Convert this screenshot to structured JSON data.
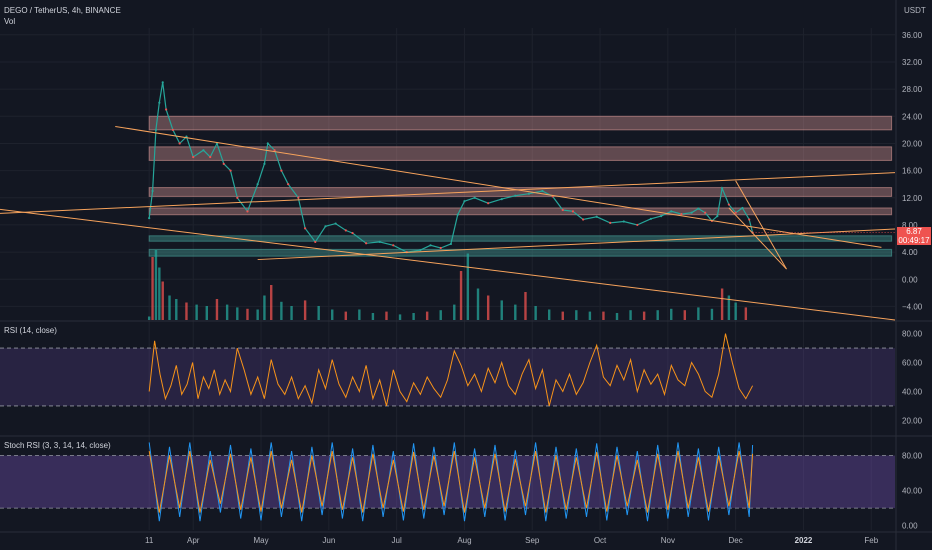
{
  "header": {
    "symbol_line": "DEGO / TetherUS, 4h, BINANCE",
    "vol_label": "Vol",
    "currency": "USDT"
  },
  "price_badge": {
    "price": "6.87",
    "countdown": "00:49:17",
    "color": "#ef5350"
  },
  "colors": {
    "background": "#131722",
    "grid": "#1e222d",
    "resistance_zone": "#f0a7a2",
    "support_zone": "#4db6ac",
    "trendline": "#f7a35c",
    "rsi_line": "#f7931a",
    "rsi_band": "#7e57c2",
    "stoch_k": "#2196f3",
    "stoch_d": "#f7931a",
    "volume_up": "#26a69a",
    "volume_down": "#ef5350"
  },
  "chart_data": [
    {
      "type": "line",
      "pane": "price",
      "ylim": [
        -6,
        37
      ],
      "y_ticks": [
        36,
        32,
        28,
        24,
        20,
        16,
        12,
        8,
        4,
        0,
        -4
      ],
      "y_tick_labels": [
        "36.00",
        "32.00",
        "28.00",
        "24.00",
        "20.00",
        "16.00",
        "12.00",
        "8.00",
        "4.00",
        "0.00",
        "−4.00"
      ],
      "x_tick_labels": [
        "11",
        "Apr",
        "May",
        "Jun",
        "Jul",
        "Aug",
        "Sep",
        "Oct",
        "Nov",
        "Dec",
        "2022",
        "Feb"
      ],
      "x_ticks": [
        0.0,
        0.65,
        1.65,
        2.65,
        3.65,
        4.65,
        5.65,
        6.65,
        7.65,
        8.65,
        9.65,
        10.65
      ],
      "x_label_bold": [
        "2022"
      ],
      "x_range": [
        -2.2,
        11.0
      ],
      "close_series": {
        "x": [
          0.0,
          0.05,
          0.1,
          0.15,
          0.2,
          0.25,
          0.35,
          0.45,
          0.55,
          0.65,
          0.8,
          0.9,
          1.0,
          1.1,
          1.2,
          1.3,
          1.45,
          1.6,
          1.7,
          1.75,
          1.85,
          1.95,
          2.05,
          2.2,
          2.3,
          2.45,
          2.6,
          2.75,
          2.9,
          3.0,
          3.2,
          3.4,
          3.6,
          3.8,
          4.0,
          4.15,
          4.3,
          4.45,
          4.55,
          4.65,
          4.8,
          5.0,
          5.2,
          5.4,
          5.6,
          5.8,
          5.95,
          6.1,
          6.25,
          6.4,
          6.6,
          6.8,
          7.0,
          7.2,
          7.4,
          7.55,
          7.7,
          7.85,
          8.0,
          8.1,
          8.2,
          8.3,
          8.38,
          8.45,
          8.55,
          8.65,
          8.75,
          8.85,
          8.9
        ],
        "values": [
          9,
          13,
          22,
          26,
          29,
          25,
          22,
          20,
          21,
          18,
          19,
          18,
          20,
          17,
          16,
          12,
          10,
          14,
          17,
          20,
          19,
          16,
          14,
          12,
          7.5,
          5.5,
          7.8,
          8.2,
          7.2,
          6.8,
          5.3,
          5.5,
          5.0,
          4.0,
          4.3,
          5.0,
          4.6,
          5.2,
          9.5,
          11.5,
          12.0,
          11.2,
          11.8,
          12.3,
          12.6,
          13.0,
          12.2,
          10.2,
          10.0,
          8.8,
          9.2,
          8.3,
          8.5,
          8.0,
          8.9,
          9.3,
          10.0,
          9.6,
          9.8,
          10.4,
          9.8,
          8.6,
          9.3,
          13.4,
          11.0,
          9.8,
          10.5,
          8.8,
          6.87
        ]
      },
      "resistance_zones": [
        [
          22,
          24
        ],
        [
          17.5,
          19.5
        ],
        [
          12.2,
          13.5
        ],
        [
          9.5,
          10.5
        ]
      ],
      "support_zones": [
        [
          5.6,
          6.4
        ],
        [
          3.4,
          4.4
        ]
      ],
      "trendlines": [
        {
          "from": [
            -0.5,
            22.5
          ],
          "to": [
            10.8,
            4.7
          ]
        },
        {
          "from": [
            -2.2,
            9.7
          ],
          "to": [
            11.0,
            15.7
          ]
        },
        {
          "from": [
            -2.2,
            10.3
          ],
          "to": [
            11.0,
            -6.0
          ]
        },
        {
          "from": [
            1.6,
            2.9
          ],
          "to": [
            11.0,
            7.4
          ]
        },
        {
          "from": [
            8.65,
            14.5
          ],
          "to": [
            9.4,
            1.5
          ]
        },
        {
          "from": [
            8.55,
            10.5
          ],
          "to": [
            9.4,
            1.5
          ]
        }
      ]
    },
    {
      "type": "bar",
      "pane": "volume",
      "name": "Vol",
      "x": [
        0.0,
        0.05,
        0.1,
        0.15,
        0.2,
        0.3,
        0.4,
        0.55,
        0.7,
        0.85,
        1.0,
        1.15,
        1.3,
        1.45,
        1.6,
        1.7,
        1.8,
        1.95,
        2.1,
        2.3,
        2.5,
        2.7,
        2.9,
        3.1,
        3.3,
        3.5,
        3.7,
        3.9,
        4.1,
        4.3,
        4.5,
        4.6,
        4.7,
        4.85,
        5.0,
        5.2,
        5.4,
        5.55,
        5.7,
        5.9,
        6.1,
        6.3,
        6.5,
        6.7,
        6.9,
        7.1,
        7.3,
        7.5,
        7.7,
        7.9,
        8.1,
        8.3,
        8.45,
        8.55,
        8.65,
        8.8
      ],
      "values": [
        5,
        90,
        100,
        75,
        55,
        35,
        30,
        25,
        22,
        20,
        30,
        22,
        18,
        16,
        15,
        35,
        50,
        26,
        20,
        28,
        20,
        15,
        12,
        15,
        10,
        12,
        8,
        10,
        12,
        14,
        22,
        70,
        95,
        45,
        35,
        28,
        22,
        40,
        20,
        15,
        12,
        14,
        12,
        12,
        10,
        14,
        12,
        14,
        16,
        14,
        18,
        16,
        45,
        35,
        25,
        18
      ],
      "ylim": [
        0,
        100
      ]
    },
    {
      "type": "line",
      "pane": "rsi",
      "title": "RSI (14, close)",
      "ylim": [
        12,
        88
      ],
      "y_ticks": [
        80,
        60,
        40,
        20
      ],
      "y_tick_labels": [
        "80.00",
        "60.00",
        "40.00",
        "20.00"
      ],
      "band": [
        30,
        70
      ],
      "x": [
        0.0,
        0.08,
        0.16,
        0.24,
        0.32,
        0.4,
        0.48,
        0.56,
        0.64,
        0.72,
        0.8,
        0.88,
        0.96,
        1.04,
        1.12,
        1.2,
        1.3,
        1.4,
        1.5,
        1.6,
        1.7,
        1.8,
        1.9,
        2.0,
        2.1,
        2.2,
        2.3,
        2.4,
        2.5,
        2.6,
        2.7,
        2.8,
        2.9,
        3.0,
        3.1,
        3.2,
        3.3,
        3.4,
        3.5,
        3.6,
        3.7,
        3.8,
        3.9,
        4.0,
        4.1,
        4.2,
        4.3,
        4.4,
        4.5,
        4.6,
        4.7,
        4.8,
        4.9,
        5.0,
        5.1,
        5.2,
        5.3,
        5.4,
        5.5,
        5.6,
        5.7,
        5.8,
        5.9,
        6.0,
        6.1,
        6.2,
        6.3,
        6.4,
        6.5,
        6.6,
        6.7,
        6.8,
        6.9,
        7.0,
        7.1,
        7.2,
        7.3,
        7.4,
        7.5,
        7.6,
        7.7,
        7.8,
        7.9,
        8.0,
        8.1,
        8.2,
        8.3,
        8.4,
        8.5,
        8.6,
        8.7,
        8.8,
        8.9
      ],
      "values": [
        40,
        75,
        52,
        35,
        44,
        58,
        38,
        45,
        60,
        35,
        50,
        42,
        55,
        38,
        48,
        40,
        70,
        55,
        38,
        50,
        35,
        62,
        45,
        38,
        50,
        35,
        44,
        32,
        55,
        42,
        62,
        45,
        36,
        50,
        40,
        58,
        35,
        48,
        30,
        55,
        40,
        33,
        46,
        38,
        50,
        42,
        36,
        48,
        68,
        58,
        44,
        52,
        40,
        56,
        46,
        60,
        44,
        38,
        52,
        62,
        42,
        55,
        30,
        48,
        40,
        52,
        38,
        46,
        60,
        72,
        50,
        44,
        58,
        48,
        62,
        40,
        55,
        45,
        52,
        38,
        58,
        48,
        44,
        60,
        52,
        40,
        36,
        52,
        80,
        60,
        42,
        35,
        44
      ]
    },
    {
      "type": "line",
      "pane": "stoch_rsi",
      "title": "Stoch RSI (3, 3, 14, 14, close)",
      "ylim": [
        -5,
        100
      ],
      "y_ticks": [
        80,
        40,
        0
      ],
      "y_tick_labels": [
        "80.00",
        "40.00",
        "0.00"
      ],
      "band": [
        20,
        80
      ],
      "x": [
        0.0,
        0.15,
        0.3,
        0.45,
        0.6,
        0.75,
        0.9,
        1.05,
        1.2,
        1.35,
        1.5,
        1.65,
        1.8,
        1.95,
        2.1,
        2.25,
        2.4,
        2.55,
        2.7,
        2.85,
        3.0,
        3.15,
        3.3,
        3.45,
        3.6,
        3.75,
        3.9,
        4.05,
        4.2,
        4.35,
        4.5,
        4.65,
        4.8,
        4.95,
        5.1,
        5.25,
        5.4,
        5.55,
        5.7,
        5.85,
        6.0,
        6.15,
        6.3,
        6.45,
        6.6,
        6.75,
        6.9,
        7.05,
        7.2,
        7.35,
        7.5,
        7.65,
        7.8,
        7.95,
        8.1,
        8.25,
        8.4,
        8.55,
        8.7,
        8.85,
        8.9
      ],
      "series": [
        {
          "values": [
            95,
            5,
            90,
            10,
            95,
            5,
            85,
            15,
            92,
            8,
            88,
            6,
            95,
            10,
            85,
            5,
            90,
            12,
            95,
            8,
            88,
            5,
            92,
            10,
            85,
            6,
            94,
            8,
            90,
            12,
            95,
            5,
            88,
            10,
            92,
            6,
            86,
            12,
            95,
            5,
            90,
            8,
            88,
            10,
            94,
            6,
            90,
            12,
            85,
            5,
            92,
            8,
            95,
            10,
            88,
            6,
            90,
            12,
            95,
            10,
            92
          ]
        },
        {
          "values": [
            85,
            15,
            80,
            20,
            85,
            15,
            75,
            25,
            82,
            18,
            78,
            16,
            85,
            20,
            75,
            15,
            80,
            22,
            85,
            18,
            78,
            15,
            82,
            20,
            75,
            16,
            84,
            18,
            80,
            22,
            85,
            15,
            78,
            20,
            82,
            16,
            76,
            22,
            85,
            15,
            80,
            18,
            78,
            20,
            84,
            16,
            80,
            22,
            75,
            15,
            82,
            18,
            85,
            20,
            78,
            16,
            80,
            22,
            85,
            20,
            82
          ]
        }
      ]
    }
  ]
}
